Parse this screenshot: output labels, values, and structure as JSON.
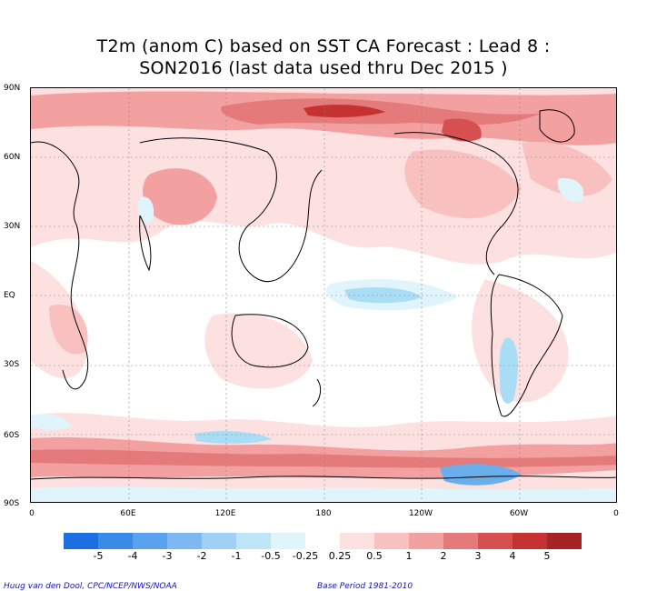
{
  "title_line1": "T2m (anom C) based on SST CA Forecast : Lead 8 :",
  "title_line2": "SON2016 (last data used thru Dec 2015 )",
  "lat_ticks": [
    "90N",
    "60N",
    "30N",
    "EQ",
    "30S",
    "60S",
    "90S"
  ],
  "lon_ticks": [
    "0",
    "60E",
    "120E",
    "180",
    "120W",
    "60W",
    "0"
  ],
  "legend": {
    "labels": [
      "-5",
      "-4",
      "-3",
      "-2",
      "-1",
      "-0.5",
      "-0.25",
      "0.25",
      "0.5",
      "1",
      "2",
      "3",
      "4",
      "5"
    ],
    "colors": [
      "#1c6fe0",
      "#3a8ae8",
      "#5aa2ee",
      "#7db8f2",
      "#9fd0f6",
      "#bfe6f8",
      "#dff5fb",
      "#ffffff",
      "#fde1e1",
      "#f9c0c0",
      "#f2a0a0",
      "#e47a7a",
      "#d65050",
      "#c43232",
      "#a52424"
    ]
  },
  "credit": "Huug van den Dool, CPC/NCEP/NWS/NOAA",
  "base_period": "Base Period 1981-2010",
  "map_colors": {
    "warm_light": "#fde1e1",
    "warm_mid": "#f7b9b9",
    "warm_strong": "#ec8f8f",
    "warm_deep": "#d65454",
    "cool_light": "#dff5fb",
    "cool_mid": "#a9dcf5",
    "cool_strong": "#6aaeea"
  }
}
